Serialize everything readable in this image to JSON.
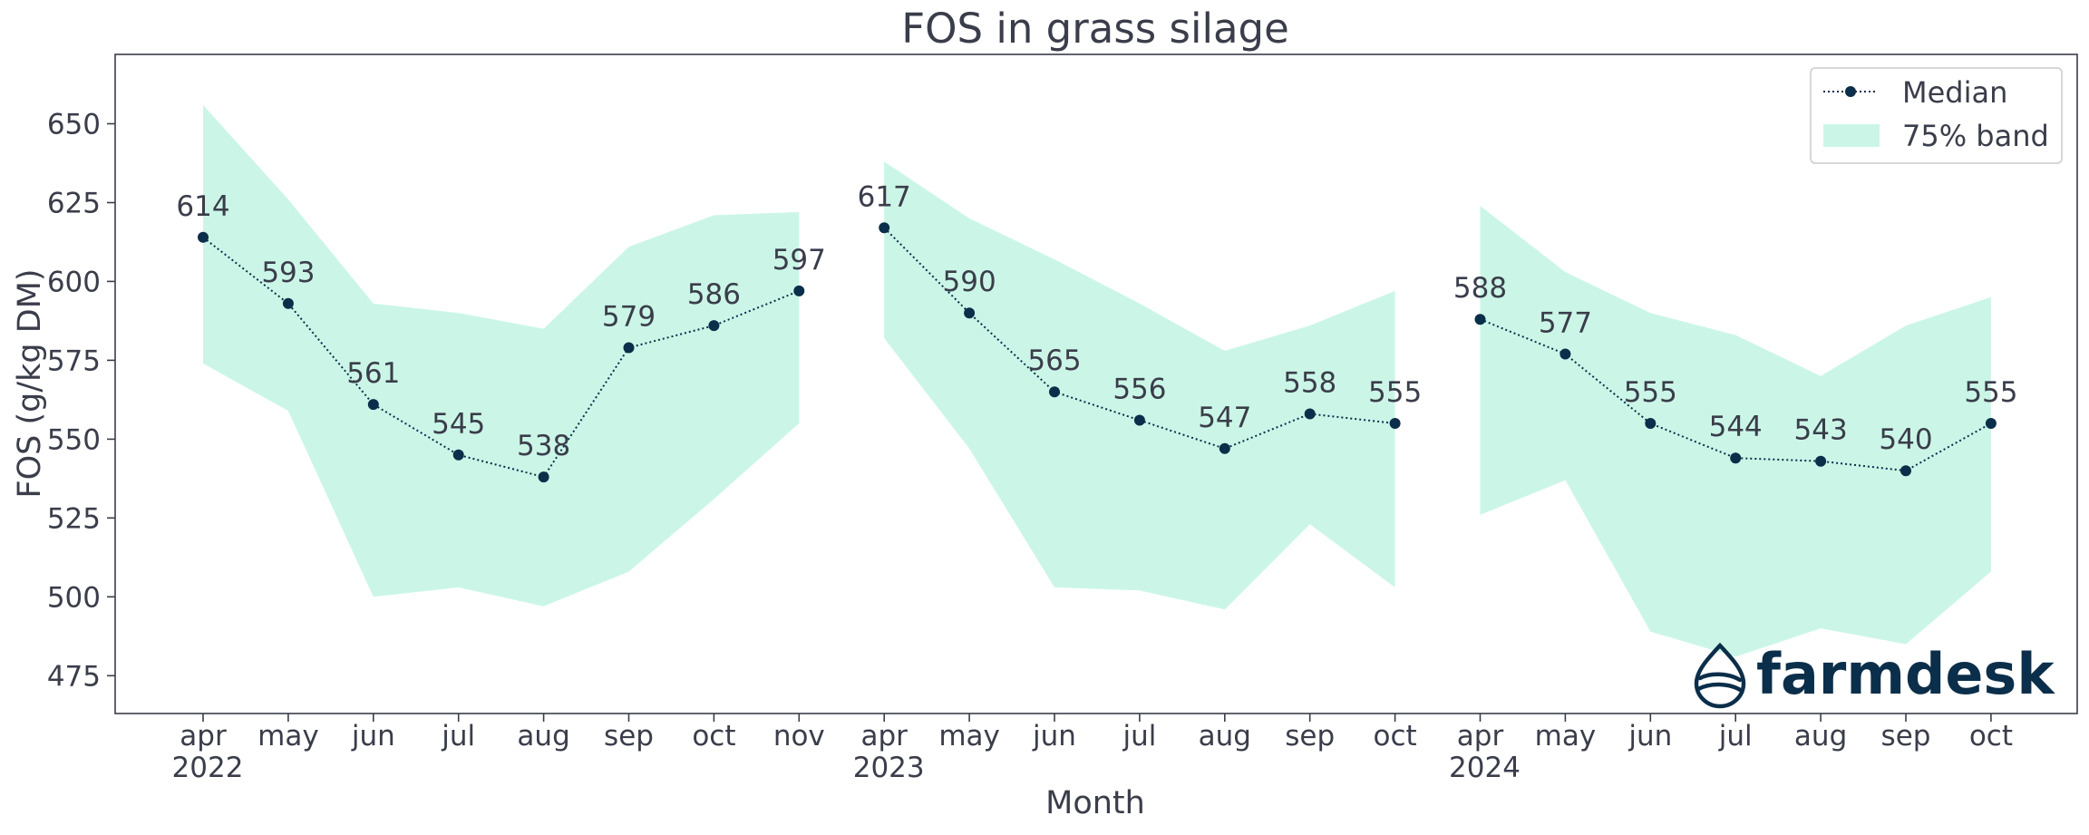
{
  "chart_data": {
    "type": "line",
    "title": "FOS in grass silage",
    "xlabel": "Month",
    "ylabel": "FOS (g/kg DM)",
    "ylim": [
      463,
      672
    ],
    "yticks": [
      475,
      500,
      525,
      550,
      575,
      600,
      625,
      650
    ],
    "categories": [
      "apr",
      "may",
      "jun",
      "jul",
      "aug",
      "sep",
      "oct",
      "nov",
      "apr",
      "may",
      "jun",
      "jul",
      "aug",
      "sep",
      "oct",
      "apr",
      "may",
      "jun",
      "jul",
      "aug",
      "sep",
      "oct"
    ],
    "year_labels": [
      {
        "index": 0,
        "label": "2022"
      },
      {
        "index": 8,
        "label": "2023"
      },
      {
        "index": 15,
        "label": "2024"
      }
    ],
    "segments": [
      {
        "year": "2022",
        "start": 0,
        "median": [
          614,
          593,
          561,
          545,
          538,
          579,
          586,
          597
        ],
        "band_upper": [
          656,
          626,
          593,
          590,
          585,
          611,
          621,
          622
        ],
        "band_lower": [
          574,
          559,
          500,
          503,
          497,
          508,
          531,
          555
        ]
      },
      {
        "year": "2023",
        "start": 8,
        "median": [
          617,
          590,
          565,
          556,
          547,
          558,
          555
        ],
        "band_upper": [
          638,
          620,
          607,
          593,
          578,
          586,
          597
        ],
        "band_lower": [
          582,
          547,
          503,
          502,
          496,
          523,
          503
        ]
      },
      {
        "year": "2024",
        "start": 15,
        "median": [
          588,
          577,
          555,
          544,
          543,
          540,
          555
        ],
        "band_upper": [
          624,
          603,
          590,
          583,
          570,
          586,
          595
        ],
        "band_lower": [
          526,
          537,
          489,
          481,
          490,
          485,
          508
        ]
      }
    ],
    "median_labels": [
      "614",
      "593",
      "561",
      "545",
      "538",
      "579",
      "586",
      "597",
      "617",
      "590",
      "565",
      "556",
      "547",
      "558",
      "555",
      "588",
      "577",
      "555",
      "544",
      "543",
      "540",
      "555"
    ],
    "legend": {
      "position": "top-right",
      "entries": [
        {
          "label": "Median",
          "kind": "line-marker"
        },
        {
          "label": "75% band",
          "kind": "patch"
        }
      ]
    },
    "colors": {
      "median": "#0b2e4a",
      "band": "#cbf6e7",
      "text": "#3a3d4a",
      "axis": "#3a3d4a"
    }
  },
  "brand": {
    "name": "farmdesk",
    "color": "#0b2e4a"
  }
}
